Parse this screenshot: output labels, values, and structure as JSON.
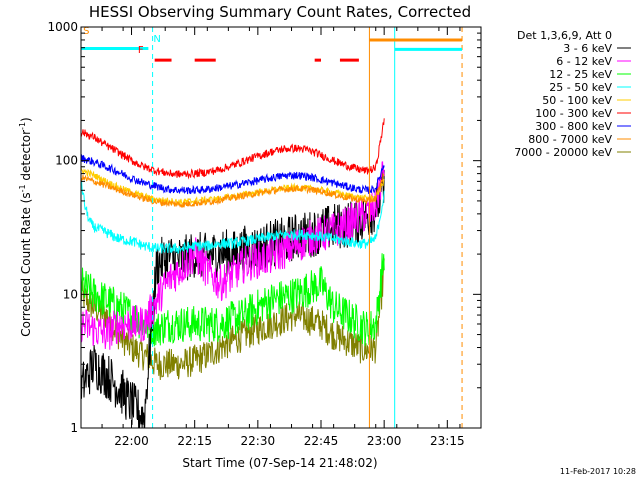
{
  "chart_data": {
    "type": "line",
    "title": "HESSI Observing Summary Count Rates, Corrected",
    "xlabel": "Start Time (07-Sep-14 21:48:02)",
    "ylabel_main": "Corrected Count Rate (s",
    "ylabel_sup1": "-1",
    "ylabel_mid": " detector",
    "ylabel_sup2": "-1",
    "ylabel_end": ")",
    "footer": "11-Feb-2017 10:28",
    "yscale": "log",
    "ylim": [
      1,
      1000
    ],
    "xlim_minutes": [
      0,
      95
    ],
    "y_ticks": [
      {
        "value": 1,
        "label": "1"
      },
      {
        "value": 10,
        "label": "10"
      },
      {
        "value": 100,
        "label": "100"
      },
      {
        "value": 1000,
        "label": "1000"
      }
    ],
    "x_ticks": [
      {
        "minute": 12,
        "label": "22:00"
      },
      {
        "minute": 27,
        "label": "22:15"
      },
      {
        "minute": 42,
        "label": "22:30"
      },
      {
        "minute": 57,
        "label": "22:45"
      },
      {
        "minute": 72,
        "label": "23:00"
      },
      {
        "minute": 87,
        "label": "23:15"
      }
    ],
    "legend_header": "Det 1,3,6,9, Att 0",
    "series": [
      {
        "name": "3 - 6 keV",
        "color": "#000000",
        "x": [
          0,
          3,
          6,
          9,
          12,
          15,
          18,
          21,
          24,
          27,
          30,
          33,
          36,
          39,
          42,
          45,
          48,
          51,
          54,
          57,
          60,
          63,
          66,
          68,
          70,
          72
        ],
        "y": [
          2,
          3,
          2.5,
          2,
          1.5,
          1.2,
          17,
          19,
          18,
          20,
          19,
          21,
          20,
          22,
          22,
          24,
          25,
          27,
          28,
          30,
          32,
          33,
          36,
          38,
          45,
          60
        ]
      },
      {
        "name": "6 - 12 keV",
        "color": "#ff00ff",
        "x": [
          0,
          3,
          6,
          9,
          12,
          15,
          18,
          21,
          24,
          27,
          30,
          33,
          36,
          39,
          42,
          45,
          48,
          51,
          54,
          57,
          60,
          63,
          66,
          68,
          70,
          72
        ],
        "y": [
          6,
          5.5,
          5,
          6,
          6,
          6,
          9,
          13,
          16,
          20,
          15,
          12,
          14,
          17,
          18,
          19,
          21,
          23,
          26,
          28,
          30,
          33,
          38,
          40,
          45,
          90
        ]
      },
      {
        "name": "12 - 25 keV",
        "color": "#00ff00",
        "x": [
          0,
          3,
          6,
          9,
          12,
          15,
          18,
          21,
          24,
          27,
          30,
          33,
          36,
          39,
          42,
          45,
          48,
          51,
          54,
          57,
          60,
          63,
          66,
          68,
          70,
          72
        ],
        "y": [
          12,
          10,
          9,
          8,
          7,
          6,
          5.5,
          6,
          6,
          6,
          6,
          6,
          6.5,
          7,
          8,
          9,
          9.5,
          10,
          11,
          12,
          8,
          7,
          6,
          5.5,
          6,
          20
        ]
      },
      {
        "name": "25 - 50 keV",
        "color": "#00ffff",
        "x": [
          0,
          1,
          2,
          3,
          5,
          7,
          9,
          12,
          15,
          18,
          21,
          24,
          27,
          30,
          33,
          36,
          39,
          42,
          45,
          48,
          51,
          54,
          57,
          60,
          63,
          66,
          68,
          70,
          72
        ],
        "y": [
          70,
          45,
          35,
          32,
          30,
          28,
          26,
          25,
          23,
          22,
          22,
          22,
          23,
          23,
          24,
          24,
          25,
          26,
          27,
          28,
          28,
          28,
          27,
          26,
          25,
          24,
          24,
          26,
          55
        ]
      },
      {
        "name": "50 - 100 keV",
        "color": "#ffcc00",
        "x": [
          0,
          3,
          6,
          9,
          12,
          15,
          18,
          21,
          24,
          27,
          30,
          33,
          36,
          39,
          42,
          45,
          48,
          51,
          54,
          57,
          60,
          63,
          66,
          68,
          70,
          72
        ],
        "y": [
          85,
          78,
          70,
          63,
          58,
          54,
          51,
          50,
          49,
          50,
          51,
          52,
          54,
          56,
          58,
          60,
          62,
          63,
          62,
          60,
          58,
          55,
          53,
          52,
          53,
          70
        ]
      },
      {
        "name": "100 - 300 keV",
        "color": "#ff0000",
        "x": [
          0,
          3,
          6,
          9,
          12,
          15,
          18,
          21,
          24,
          27,
          30,
          33,
          36,
          39,
          42,
          45,
          48,
          51,
          54,
          57,
          60,
          63,
          66,
          68,
          70,
          72
        ],
        "y": [
          165,
          150,
          130,
          115,
          100,
          90,
          84,
          80,
          79,
          80,
          82,
          86,
          92,
          100,
          108,
          116,
          122,
          124,
          120,
          110,
          100,
          92,
          86,
          84,
          88,
          200
        ]
      },
      {
        "name": "300 - 800 keV",
        "color": "#0000ff",
        "x": [
          0,
          3,
          6,
          9,
          12,
          15,
          18,
          21,
          24,
          27,
          30,
          33,
          36,
          39,
          42,
          45,
          48,
          51,
          54,
          57,
          60,
          63,
          66,
          68,
          70,
          72
        ],
        "y": [
          105,
          98,
          90,
          82,
          74,
          68,
          64,
          61,
          60,
          60,
          61,
          63,
          65,
          68,
          71,
          74,
          77,
          78,
          76,
          72,
          68,
          64,
          61,
          60,
          62,
          95
        ]
      },
      {
        "name": "800 - 7000 keV",
        "color": "#ff8c00",
        "x": [
          0,
          3,
          6,
          9,
          12,
          15,
          18,
          21,
          24,
          27,
          30,
          33,
          36,
          39,
          42,
          45,
          48,
          51,
          54,
          57,
          60,
          63,
          66,
          68,
          70,
          72
        ],
        "y": [
          75,
          70,
          65,
          60,
          56,
          52,
          49,
          48,
          47,
          48,
          49,
          51,
          53,
          55,
          57,
          59,
          61,
          62,
          61,
          59,
          56,
          53,
          51,
          50,
          52,
          80
        ]
      },
      {
        "name": "7000 - 20000 keV",
        "color": "#808000",
        "x": [
          0,
          3,
          6,
          9,
          12,
          15,
          18,
          21,
          24,
          27,
          30,
          33,
          36,
          39,
          42,
          45,
          48,
          51,
          54,
          57,
          60,
          63,
          66,
          68,
          70,
          72
        ],
        "y": [
          10,
          8,
          7,
          5,
          4,
          3.5,
          3,
          3,
          3,
          3.2,
          3.5,
          4,
          4.5,
          5,
          5.5,
          6,
          6.5,
          7,
          6.5,
          6,
          5,
          4.5,
          4,
          3.8,
          4,
          15
        ]
      }
    ],
    "markers": [
      {
        "label": "S",
        "color": "#ff8c00",
        "minute": 0.5,
        "y": 890
      },
      {
        "label": "F",
        "color": "#ff0000",
        "minute": 13.5,
        "y": 640
      },
      {
        "label": "N",
        "color": "#00ffff",
        "minute": 17.2,
        "y": 770
      }
    ],
    "vertical_lines": [
      {
        "minute": 17,
        "color": "#00ffff",
        "style": "dashed"
      },
      {
        "minute": 68.5,
        "color": "#ff8c00",
        "style": "solid"
      },
      {
        "minute": 74.5,
        "color": "#00ffff",
        "style": "solid"
      },
      {
        "minute": 90.5,
        "color": "#ff8c00",
        "style": "dashed"
      }
    ],
    "segments": [
      {
        "name": "saa-bar",
        "color": "#00ffff",
        "minutes": [
          [
            0,
            16
          ]
        ],
        "y": 690
      },
      {
        "name": "flare-bar",
        "color": "#ff0000",
        "minutes": [
          [
            17.5,
            21.5
          ],
          [
            27,
            32
          ],
          [
            55.5,
            57
          ],
          [
            61.5,
            66
          ]
        ],
        "y": 565
      },
      {
        "name": "attenuator-bar",
        "color": "#ff8c00",
        "minutes": [
          [
            68.5,
            90.5
          ]
        ],
        "y": 800
      },
      {
        "name": "night-bar",
        "color": "#00ffff",
        "minutes": [
          [
            74.5,
            90.5
          ]
        ],
        "y": 680
      }
    ]
  }
}
